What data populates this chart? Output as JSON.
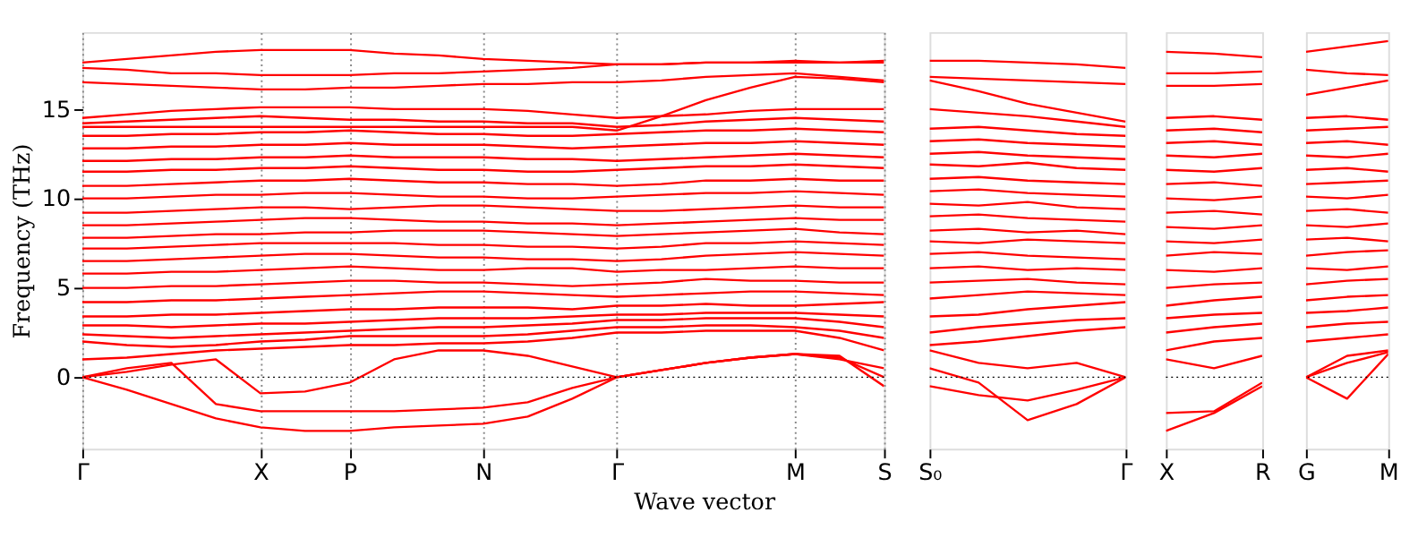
{
  "chart_data": [
    {
      "type": "line",
      "color": "#ff0000",
      "ylabel": "Frequency (THz)",
      "xlabel": "Wave vector",
      "grid": "x",
      "categories": [
        "Γ",
        null,
        null,
        null,
        "X",
        null,
        "P",
        null,
        null,
        "N",
        null,
        null,
        "Γ",
        null,
        null,
        null,
        "M",
        null,
        "S"
      ],
      "ylim": [
        -4,
        19.3
      ],
      "yticks": [
        0,
        5,
        10,
        15
      ],
      "ref_lines": [
        {
          "axis": "y",
          "value": 0,
          "label": null,
          "color": "#000000",
          "line_style": "dotted"
        }
      ],
      "series": [
        {
          "values": [
            0,
            -0.7,
            -1.5,
            -2.3,
            -2.8,
            -3.0,
            -3.0,
            -2.8,
            -2.7,
            -2.6,
            -2.2,
            -1.2,
            0,
            0.4,
            0.8,
            1.1,
            1.3,
            1.2,
            -0.5
          ]
        },
        {
          "values": [
            0,
            0.5,
            0.8,
            -1.5,
            -1.9,
            -1.9,
            -1.9,
            -1.9,
            -1.8,
            -1.7,
            -1.4,
            -0.6,
            0,
            0.4,
            0.8,
            1.1,
            1.3,
            1.1,
            0
          ]
        },
        {
          "values": [
            0,
            0.3,
            0.7,
            1.0,
            -0.9,
            -0.8,
            -0.3,
            1.0,
            1.5,
            1.5,
            1.2,
            0.6,
            0,
            0.4,
            0.8,
            1.1,
            1.3,
            1.0,
            0.5
          ]
        },
        {
          "values": [
            1.0,
            1.1,
            1.3,
            1.5,
            1.6,
            1.7,
            1.8,
            1.8,
            1.9,
            1.9,
            2.0,
            2.2,
            2.5,
            2.5,
            2.6,
            2.6,
            2.6,
            2.2,
            1.5
          ]
        },
        {
          "values": [
            2.0,
            1.8,
            1.7,
            1.8,
            2.0,
            2.1,
            2.3,
            2.3,
            2.3,
            2.3,
            2.4,
            2.6,
            2.8,
            2.8,
            2.9,
            2.9,
            2.8,
            2.6,
            2.2
          ]
        },
        {
          "values": [
            2.4,
            2.3,
            2.2,
            2.3,
            2.4,
            2.5,
            2.6,
            2.7,
            2.8,
            2.8,
            2.9,
            3.0,
            3.2,
            3.2,
            3.3,
            3.3,
            3.3,
            3.1,
            2.8
          ]
        },
        {
          "values": [
            2.9,
            2.9,
            2.8,
            2.9,
            3.0,
            3.0,
            3.1,
            3.2,
            3.3,
            3.3,
            3.3,
            3.4,
            3.5,
            3.5,
            3.6,
            3.6,
            3.6,
            3.5,
            3.4
          ]
        },
        {
          "values": [
            3.4,
            3.4,
            3.5,
            3.5,
            3.6,
            3.7,
            3.8,
            3.8,
            3.9,
            3.9,
            3.9,
            3.8,
            4.0,
            4.0,
            4.1,
            4.0,
            4.0,
            4.1,
            4.2
          ]
        },
        {
          "values": [
            4.2,
            4.2,
            4.3,
            4.3,
            4.4,
            4.5,
            4.6,
            4.7,
            4.8,
            4.8,
            4.7,
            4.6,
            4.5,
            4.6,
            4.7,
            4.8,
            4.8,
            4.7,
            4.6
          ]
        },
        {
          "values": [
            5.0,
            5.0,
            5.1,
            5.1,
            5.2,
            5.3,
            5.4,
            5.4,
            5.3,
            5.3,
            5.2,
            5.1,
            5.2,
            5.3,
            5.5,
            5.4,
            5.4,
            5.3,
            5.3
          ]
        },
        {
          "values": [
            5.8,
            5.8,
            5.9,
            5.9,
            6.0,
            6.1,
            6.2,
            6.1,
            6.0,
            6.0,
            6.1,
            6.1,
            5.9,
            6.0,
            6.0,
            6.1,
            6.2,
            6.1,
            6.1
          ]
        },
        {
          "values": [
            6.5,
            6.5,
            6.6,
            6.7,
            6.8,
            6.9,
            6.9,
            6.8,
            6.7,
            6.7,
            6.6,
            6.6,
            6.5,
            6.6,
            6.8,
            6.9,
            7.0,
            6.9,
            6.8
          ]
        },
        {
          "values": [
            7.2,
            7.2,
            7.3,
            7.4,
            7.5,
            7.5,
            7.5,
            7.5,
            7.4,
            7.4,
            7.3,
            7.3,
            7.2,
            7.3,
            7.5,
            7.5,
            7.6,
            7.5,
            7.4
          ]
        },
        {
          "values": [
            7.8,
            7.8,
            7.9,
            8.0,
            8.0,
            8.1,
            8.1,
            8.2,
            8.2,
            8.2,
            8.1,
            8.0,
            7.9,
            8.0,
            8.1,
            8.2,
            8.3,
            8.1,
            8.0
          ]
        },
        {
          "values": [
            8.5,
            8.5,
            8.6,
            8.7,
            8.8,
            8.9,
            8.9,
            8.8,
            8.7,
            8.7,
            8.6,
            8.6,
            8.5,
            8.6,
            8.7,
            8.8,
            8.9,
            8.8,
            8.8
          ]
        },
        {
          "values": [
            9.2,
            9.2,
            9.3,
            9.4,
            9.5,
            9.5,
            9.4,
            9.5,
            9.6,
            9.6,
            9.5,
            9.4,
            9.3,
            9.3,
            9.4,
            9.5,
            9.6,
            9.5,
            9.5
          ]
        },
        {
          "values": [
            10.0,
            10.0,
            10.1,
            10.2,
            10.2,
            10.3,
            10.3,
            10.2,
            10.1,
            10.1,
            10.0,
            10.0,
            10.1,
            10.2,
            10.3,
            10.3,
            10.4,
            10.3,
            10.2
          ]
        },
        {
          "values": [
            10.7,
            10.7,
            10.8,
            10.9,
            11.0,
            11.0,
            11.1,
            11.0,
            10.9,
            10.9,
            10.8,
            10.8,
            10.7,
            10.8,
            11.0,
            11.0,
            11.1,
            11.0,
            11.0
          ]
        },
        {
          "values": [
            11.5,
            11.5,
            11.6,
            11.6,
            11.7,
            11.7,
            11.8,
            11.7,
            11.6,
            11.6,
            11.5,
            11.5,
            11.6,
            11.7,
            11.8,
            11.8,
            11.9,
            11.8,
            11.7
          ]
        },
        {
          "values": [
            12.1,
            12.1,
            12.2,
            12.2,
            12.3,
            12.3,
            12.4,
            12.3,
            12.3,
            12.3,
            12.2,
            12.2,
            12.1,
            12.2,
            12.3,
            12.4,
            12.5,
            12.4,
            12.3
          ]
        },
        {
          "values": [
            12.8,
            12.8,
            12.9,
            12.9,
            13.0,
            13.0,
            13.1,
            13.0,
            13.0,
            13.0,
            12.9,
            12.8,
            12.9,
            13.0,
            13.1,
            13.1,
            13.2,
            13.1,
            13.0
          ]
        },
        {
          "values": [
            13.5,
            13.5,
            13.6,
            13.6,
            13.7,
            13.7,
            13.8,
            13.7,
            13.6,
            13.6,
            13.5,
            13.5,
            13.6,
            13.7,
            13.8,
            13.8,
            13.9,
            13.8,
            13.7
          ]
        },
        {
          "values": [
            14.0,
            14.0,
            14.0,
            14.0,
            14.0,
            14.0,
            14.0,
            14.0,
            14.0,
            14.0,
            14.0,
            14.0,
            13.8,
            14.6,
            15.5,
            16.2,
            16.8,
            16.7,
            16.5
          ]
        },
        {
          "values": [
            14.2,
            14.3,
            14.4,
            14.5,
            14.6,
            14.5,
            14.4,
            14.4,
            14.3,
            14.3,
            14.2,
            14.2,
            14.0,
            14.1,
            14.3,
            14.4,
            14.5,
            14.4,
            14.3
          ]
        },
        {
          "values": [
            14.5,
            14.7,
            14.9,
            15.0,
            15.1,
            15.1,
            15.1,
            15.0,
            15.0,
            15.0,
            14.9,
            14.7,
            14.5,
            14.6,
            14.7,
            14.9,
            15.0,
            15.0,
            15.0
          ]
        },
        {
          "values": [
            16.5,
            16.4,
            16.3,
            16.2,
            16.1,
            16.1,
            16.2,
            16.2,
            16.3,
            16.4,
            16.4,
            16.5,
            16.5,
            16.6,
            16.8,
            16.9,
            17.0,
            16.8,
            16.6
          ]
        },
        {
          "values": [
            17.3,
            17.2,
            17.0,
            17.0,
            16.9,
            16.9,
            16.9,
            17.0,
            17.0,
            17.1,
            17.2,
            17.3,
            17.5,
            17.5,
            17.6,
            17.6,
            17.7,
            17.6,
            17.6
          ]
        },
        {
          "values": [
            17.6,
            17.8,
            18.0,
            18.2,
            18.3,
            18.3,
            18.3,
            18.1,
            18.0,
            17.8,
            17.7,
            17.6,
            17.5,
            17.5,
            17.6,
            17.6,
            17.6,
            17.6,
            17.7
          ]
        }
      ]
    },
    {
      "type": "line",
      "color": "#ff0000",
      "tick_labels": "x",
      "categories": [
        "S₀",
        null,
        null,
        null,
        "Γ"
      ],
      "ylim": [
        -4,
        19.3
      ],
      "ref_lines": [
        {
          "axis": "y",
          "value": 0,
          "label": null,
          "color": "#000000",
          "line_style": "dotted"
        }
      ],
      "series": [
        {
          "values": [
            -0.5,
            -1.0,
            -1.3,
            -0.7,
            0
          ]
        },
        {
          "values": [
            0.5,
            -0.3,
            -2.4,
            -1.5,
            0
          ]
        },
        {
          "values": [
            1.5,
            0.8,
            0.5,
            0.8,
            0
          ]
        },
        {
          "values": [
            1.8,
            2.0,
            2.3,
            2.6,
            2.8
          ]
        },
        {
          "values": [
            2.5,
            2.8,
            3.0,
            3.2,
            3.3
          ]
        },
        {
          "values": [
            3.4,
            3.5,
            3.8,
            4.0,
            4.2
          ]
        },
        {
          "values": [
            4.4,
            4.6,
            4.8,
            4.7,
            4.6
          ]
        },
        {
          "values": [
            5.3,
            5.4,
            5.5,
            5.3,
            5.2
          ]
        },
        {
          "values": [
            6.1,
            6.2,
            6.0,
            6.1,
            6.0
          ]
        },
        {
          "values": [
            6.9,
            7.0,
            6.8,
            6.7,
            6.6
          ]
        },
        {
          "values": [
            7.6,
            7.5,
            7.7,
            7.6,
            7.5
          ]
        },
        {
          "values": [
            8.2,
            8.3,
            8.1,
            8.2,
            8.0
          ]
        },
        {
          "values": [
            9.0,
            9.1,
            8.9,
            8.8,
            8.7
          ]
        },
        {
          "values": [
            9.7,
            9.6,
            9.8,
            9.5,
            9.4
          ]
        },
        {
          "values": [
            10.4,
            10.5,
            10.3,
            10.2,
            10.1
          ]
        },
        {
          "values": [
            11.1,
            11.2,
            11.0,
            10.9,
            10.8
          ]
        },
        {
          "values": [
            11.9,
            11.8,
            12.0,
            11.7,
            11.6
          ]
        },
        {
          "values": [
            12.5,
            12.6,
            12.4,
            12.3,
            12.2
          ]
        },
        {
          "values": [
            13.2,
            13.3,
            13.1,
            13.0,
            12.9
          ]
        },
        {
          "values": [
            13.9,
            14.0,
            13.8,
            13.6,
            13.5
          ]
        },
        {
          "values": [
            15.0,
            14.8,
            14.6,
            14.3,
            14.0
          ]
        },
        {
          "values": [
            16.6,
            16.0,
            15.3,
            14.8,
            14.3
          ]
        },
        {
          "values": [
            16.8,
            16.7,
            16.6,
            16.5,
            16.4
          ]
        },
        {
          "values": [
            17.7,
            17.7,
            17.6,
            17.5,
            17.3
          ]
        }
      ]
    },
    {
      "type": "line",
      "color": "#ff0000",
      "tick_labels": "x",
      "categories": [
        "X",
        null,
        "R"
      ],
      "ylim": [
        -4,
        19.3
      ],
      "ref_lines": [
        {
          "axis": "y",
          "value": 0,
          "label": null,
          "color": "#000000",
          "line_style": "dotted"
        }
      ],
      "series": [
        {
          "values": [
            -3.0,
            -2.0,
            -0.5
          ]
        },
        {
          "values": [
            -2.0,
            -1.9,
            -0.3
          ]
        },
        {
          "values": [
            1.0,
            0.5,
            1.2
          ]
        },
        {
          "values": [
            1.5,
            2.0,
            2.2
          ]
        },
        {
          "values": [
            2.5,
            2.8,
            3.0
          ]
        },
        {
          "values": [
            3.3,
            3.5,
            3.6
          ]
        },
        {
          "values": [
            4.0,
            4.3,
            4.5
          ]
        },
        {
          "values": [
            5.0,
            5.2,
            5.3
          ]
        },
        {
          "values": [
            6.0,
            5.9,
            6.1
          ]
        },
        {
          "values": [
            6.8,
            7.0,
            6.9
          ]
        },
        {
          "values": [
            7.6,
            7.5,
            7.7
          ]
        },
        {
          "values": [
            8.4,
            8.3,
            8.5
          ]
        },
        {
          "values": [
            9.2,
            9.3,
            9.1
          ]
        },
        {
          "values": [
            10.0,
            9.9,
            10.1
          ]
        },
        {
          "values": [
            10.8,
            10.9,
            10.7
          ]
        },
        {
          "values": [
            11.6,
            11.5,
            11.7
          ]
        },
        {
          "values": [
            12.4,
            12.3,
            12.5
          ]
        },
        {
          "values": [
            13.1,
            13.2,
            13.0
          ]
        },
        {
          "values": [
            13.8,
            13.9,
            13.7
          ]
        },
        {
          "values": [
            14.5,
            14.6,
            14.4
          ]
        },
        {
          "values": [
            16.3,
            16.3,
            16.4
          ]
        },
        {
          "values": [
            17.0,
            17.0,
            17.1
          ]
        },
        {
          "values": [
            18.2,
            18.1,
            17.9
          ]
        }
      ]
    },
    {
      "type": "line",
      "color": "#ff0000",
      "tick_labels": "x",
      "categories": [
        "G",
        null,
        "M"
      ],
      "ylim": [
        -4,
        19.3
      ],
      "ref_lines": [
        {
          "axis": "y",
          "value": 0,
          "label": null,
          "color": "#000000",
          "line_style": "dotted"
        }
      ],
      "series": [
        {
          "values": [
            0,
            -1.2,
            1.3
          ]
        },
        {
          "values": [
            0,
            0.8,
            1.4
          ]
        },
        {
          "values": [
            0,
            1.2,
            1.5
          ]
        },
        {
          "values": [
            2.0,
            2.2,
            2.4
          ]
        },
        {
          "values": [
            2.8,
            3.0,
            3.1
          ]
        },
        {
          "values": [
            3.6,
            3.7,
            3.9
          ]
        },
        {
          "values": [
            4.3,
            4.5,
            4.6
          ]
        },
        {
          "values": [
            5.2,
            5.4,
            5.5
          ]
        },
        {
          "values": [
            6.1,
            6.0,
            6.2
          ]
        },
        {
          "values": [
            6.8,
            7.0,
            7.1
          ]
        },
        {
          "values": [
            7.7,
            7.8,
            7.6
          ]
        },
        {
          "values": [
            8.5,
            8.4,
            8.6
          ]
        },
        {
          "values": [
            9.3,
            9.4,
            9.2
          ]
        },
        {
          "values": [
            10.1,
            10.0,
            10.2
          ]
        },
        {
          "values": [
            10.8,
            10.9,
            11.0
          ]
        },
        {
          "values": [
            11.6,
            11.7,
            11.5
          ]
        },
        {
          "values": [
            12.4,
            12.3,
            12.5
          ]
        },
        {
          "values": [
            13.1,
            13.2,
            13.0
          ]
        },
        {
          "values": [
            13.8,
            13.9,
            14.0
          ]
        },
        {
          "values": [
            14.5,
            14.6,
            14.4
          ]
        },
        {
          "values": [
            15.8,
            16.2,
            16.6
          ]
        },
        {
          "values": [
            17.2,
            17.0,
            16.9
          ]
        },
        {
          "values": [
            18.2,
            18.5,
            18.8
          ]
        }
      ]
    }
  ]
}
